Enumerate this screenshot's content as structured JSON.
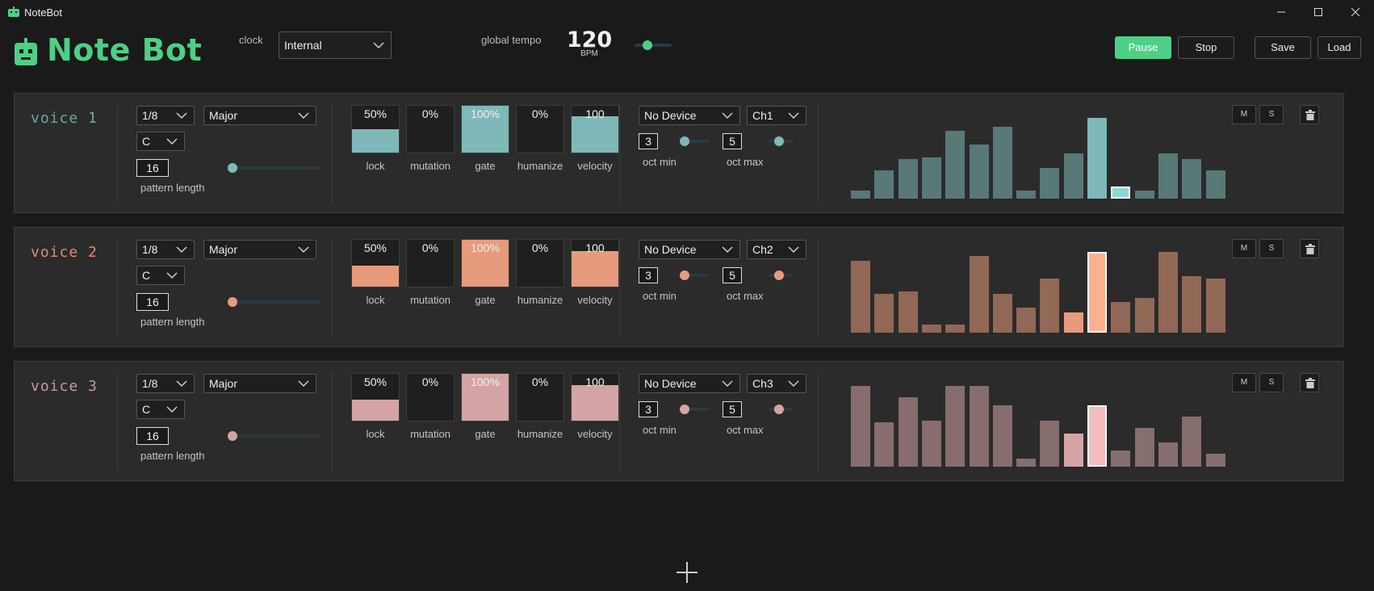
{
  "window": {
    "title": "NoteBot",
    "controls": [
      "minimize-icon",
      "maximize-icon",
      "close-icon"
    ]
  },
  "header": {
    "logo_text": "Note Bot",
    "clock_label": "clock",
    "clock_value": "Internal",
    "tempo_label": "global tempo",
    "tempo_value": "120",
    "tempo_unit": "BPM",
    "tempo_slider_fraction": 0.35,
    "buttons": {
      "pause": "Pause",
      "stop": "Stop",
      "save": "Save",
      "load": "Load"
    },
    "accent_color": "#4ecf86"
  },
  "labels": {
    "pattern_length": "pattern length",
    "lock": "lock",
    "mutation": "mutation",
    "gate": "gate",
    "humanize": "humanize",
    "velocity": "velocity",
    "oct_min": "oct min",
    "oct_max": "oct max",
    "mute": "M",
    "solo": "S"
  },
  "voices": [
    {
      "name": "voice 1",
      "color": "#7fb8b8",
      "name_color": "#6fa6a6",
      "rate": "1/8",
      "scale": "Major",
      "key": "C",
      "pattern_length": "16",
      "pattern_length_fraction": 0.0,
      "knobs": {
        "lock": "50%",
        "mutation": "0%",
        "gate": "100%",
        "humanize": "0%",
        "velocity": "100"
      },
      "knob_fill": {
        "lock": 0.5,
        "mutation": 0.0,
        "gate": 1.0,
        "humanize": 0.0,
        "velocity": 0.78
      },
      "device": "No Device",
      "channel": "Ch1",
      "oct_min": "3",
      "oct_max": "5",
      "steps": [
        0.1,
        0.35,
        0.49,
        0.51,
        0.84,
        0.67,
        0.89,
        0.1,
        0.38,
        0.56,
        1.0,
        0.15,
        0.1,
        0.56,
        0.49,
        0.35
      ],
      "current_step": 11
    },
    {
      "name": "voice 2",
      "color": "#e89a7c",
      "name_color": "#e08d6f",
      "rate": "1/8",
      "scale": "Major",
      "key": "C",
      "pattern_length": "16",
      "pattern_length_fraction": 0.0,
      "knobs": {
        "lock": "50%",
        "mutation": "0%",
        "gate": "100%",
        "humanize": "0%",
        "velocity": "100"
      },
      "knob_fill": {
        "lock": 0.45,
        "mutation": 0.0,
        "gate": 1.0,
        "humanize": 0.0,
        "velocity": 0.76
      },
      "device": "No Device",
      "channel": "Ch2",
      "oct_min": "3",
      "oct_max": "5",
      "steps": [
        0.89,
        0.48,
        0.51,
        0.1,
        0.1,
        0.95,
        0.48,
        0.31,
        0.67,
        0.25,
        1.0,
        0.38,
        0.43,
        1.0,
        0.7,
        0.67
      ],
      "current_step": 10
    },
    {
      "name": "voice 3",
      "color": "#d4a4a4",
      "name_color": "#c89a9a",
      "rate": "1/8",
      "scale": "Major",
      "key": "C",
      "pattern_length": "16",
      "pattern_length_fraction": 0.0,
      "knobs": {
        "lock": "50%",
        "mutation": "0%",
        "gate": "100%",
        "humanize": "0%",
        "velocity": "100"
      },
      "knob_fill": {
        "lock": 0.45,
        "mutation": 0.0,
        "gate": 1.0,
        "humanize": 0.0,
        "velocity": 0.76
      },
      "device": "No Device",
      "channel": "Ch3",
      "oct_min": "3",
      "oct_max": "5",
      "steps": [
        1.0,
        0.55,
        0.86,
        0.57,
        1.0,
        1.0,
        0.76,
        0.1,
        0.57,
        0.41,
        0.76,
        0.2,
        0.48,
        0.3,
        0.62,
        0.16
      ],
      "current_step": 10
    }
  ],
  "add_voice_icon": "plus-icon"
}
